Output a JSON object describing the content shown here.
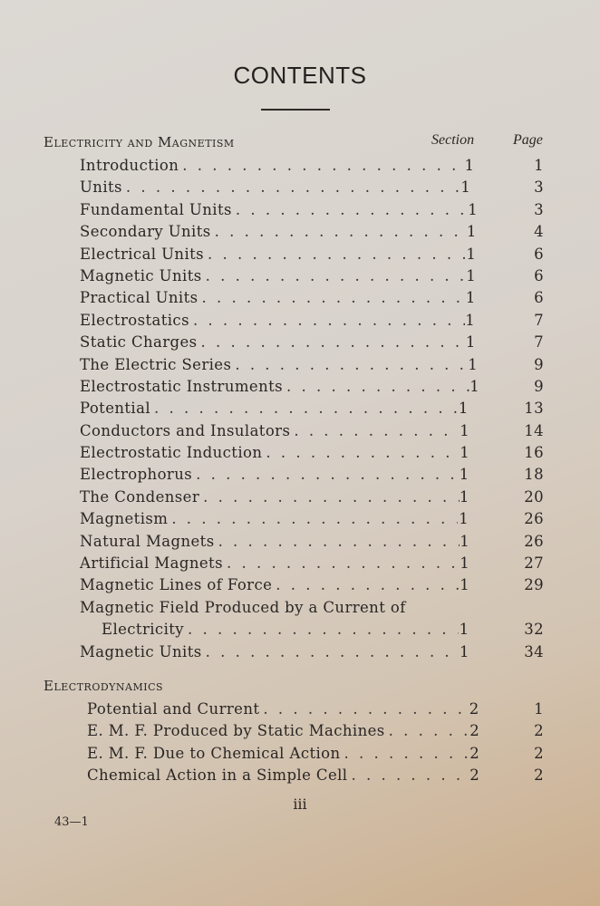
{
  "title": "CONTENTS",
  "columns": {
    "section": "Section",
    "page": "Page"
  },
  "parts": [
    {
      "heading": "Electricity and Magnetism",
      "entries": [
        {
          "title": "Introduction",
          "section": "1",
          "page": "1"
        },
        {
          "title": "Units",
          "section": "1",
          "page": "3"
        },
        {
          "title": "Fundamental Units",
          "section": "1",
          "page": "3"
        },
        {
          "title": "Secondary Units",
          "section": "1",
          "page": "4"
        },
        {
          "title": "Electrical Units",
          "section": "1",
          "page": "6"
        },
        {
          "title": "Magnetic Units",
          "section": "1",
          "page": "6"
        },
        {
          "title": "Practical Units",
          "section": "1",
          "page": "6"
        },
        {
          "title": "Electrostatics",
          "section": "1",
          "page": "7"
        },
        {
          "title": "Static Charges",
          "section": "1",
          "page": "7"
        },
        {
          "title": "The Electric Series",
          "section": "1",
          "page": "9"
        },
        {
          "title": "Electrostatic Instruments",
          "section": "1",
          "page": "9"
        },
        {
          "title": "Potential",
          "section": "1",
          "page": "13"
        },
        {
          "title": "Conductors and Insulators",
          "section": "1",
          "page": "14"
        },
        {
          "title": "Electrostatic Induction",
          "section": "1",
          "page": "16"
        },
        {
          "title": "Electrophorus",
          "section": "1",
          "page": "18"
        },
        {
          "title": "The Condenser",
          "section": "1",
          "page": "20"
        },
        {
          "title": "Magnetism",
          "section": "1",
          "page": "26"
        },
        {
          "title": "Natural Magnets",
          "section": "1",
          "page": "26"
        },
        {
          "title": "Artificial Magnets",
          "section": "1",
          "page": "27"
        },
        {
          "title": "Magnetic Lines of Force",
          "section": "1",
          "page": "29"
        },
        {
          "title": "Magnetic Field Produced by a Current of",
          "continuation": "Electricity",
          "section": "1",
          "page": "32"
        },
        {
          "title": "Magnetic Units",
          "section": "1",
          "page": "34"
        }
      ]
    },
    {
      "heading": "Electrodynamics",
      "entries": [
        {
          "title": "Potential and Current",
          "section": "2",
          "page": "1"
        },
        {
          "title": "E. M. F. Produced by Static Machines",
          "section": "2",
          "page": "2"
        },
        {
          "title": "E. M. F. Due to Chemical Action",
          "section": "2",
          "page": "2"
        },
        {
          "title": "Chemical Action in a Simple Cell",
          "section": "2",
          "page": "2"
        }
      ]
    }
  ],
  "folio": "iii",
  "signature": "43—1"
}
